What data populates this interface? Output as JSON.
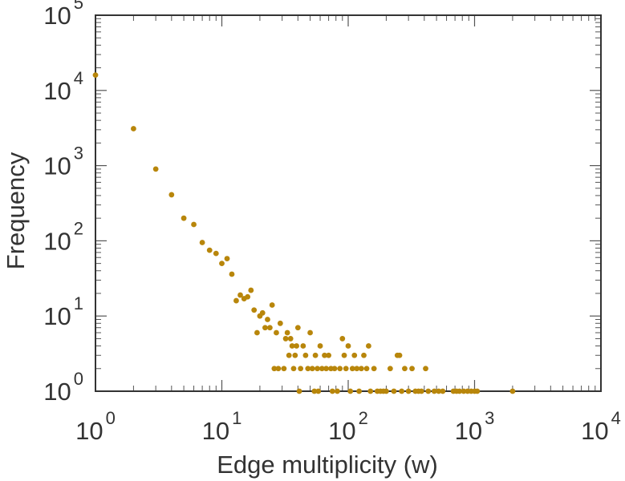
{
  "chart_data": {
    "type": "scatter",
    "xscale": "log",
    "yscale": "log",
    "xlabel": "Edge multiplicity (w)",
    "ylabel": "Frequency",
    "xlim": [
      1,
      10000
    ],
    "ylim": [
      1,
      100000
    ],
    "grid": false,
    "marker_color": "#b8860b",
    "x_ticks": [
      {
        "base": "10",
        "exp": "0"
      },
      {
        "base": "10",
        "exp": "1"
      },
      {
        "base": "10",
        "exp": "2"
      },
      {
        "base": "10",
        "exp": "3"
      },
      {
        "base": "10",
        "exp": "4"
      }
    ],
    "y_ticks": [
      {
        "base": "10",
        "exp": "0"
      },
      {
        "base": "10",
        "exp": "1"
      },
      {
        "base": "10",
        "exp": "2"
      },
      {
        "base": "10",
        "exp": "3"
      },
      {
        "base": "10",
        "exp": "4"
      },
      {
        "base": "10",
        "exp": "5"
      }
    ],
    "points": [
      [
        1,
        16000
      ],
      [
        2,
        3100
      ],
      [
        3,
        900
      ],
      [
        4,
        410
      ],
      [
        5,
        200
      ],
      [
        6,
        165
      ],
      [
        7,
        95
      ],
      [
        8,
        75
      ],
      [
        9,
        68
      ],
      [
        10,
        50
      ],
      [
        11,
        58
      ],
      [
        12,
        36
      ],
      [
        13,
        16
      ],
      [
        14,
        19
      ],
      [
        15,
        17
      ],
      [
        16,
        18
      ],
      [
        17,
        22
      ],
      [
        18,
        12
      ],
      [
        19,
        6
      ],
      [
        20,
        10
      ],
      [
        21,
        11
      ],
      [
        22,
        7
      ],
      [
        23,
        9
      ],
      [
        24,
        7
      ],
      [
        25,
        14
      ],
      [
        26,
        2
      ],
      [
        27,
        6
      ],
      [
        28,
        2
      ],
      [
        29,
        8
      ],
      [
        31,
        2
      ],
      [
        32,
        5
      ],
      [
        33,
        6
      ],
      [
        34,
        3
      ],
      [
        35,
        5
      ],
      [
        36,
        4
      ],
      [
        37,
        2
      ],
      [
        38,
        3
      ],
      [
        39,
        4
      ],
      [
        40,
        7
      ],
      [
        41,
        1
      ],
      [
        42,
        2
      ],
      [
        44,
        4
      ],
      [
        46,
        3
      ],
      [
        48,
        2
      ],
      [
        50,
        6
      ],
      [
        52,
        2
      ],
      [
        54,
        1
      ],
      [
        55,
        3
      ],
      [
        57,
        2
      ],
      [
        58,
        1
      ],
      [
        60,
        4
      ],
      [
        62,
        2
      ],
      [
        65,
        3
      ],
      [
        67,
        2
      ],
      [
        70,
        3
      ],
      [
        73,
        2
      ],
      [
        75,
        1
      ],
      [
        78,
        2
      ],
      [
        82,
        1
      ],
      [
        86,
        2
      ],
      [
        90,
        5
      ],
      [
        93,
        3
      ],
      [
        96,
        2
      ],
      [
        100,
        4
      ],
      [
        104,
        1
      ],
      [
        108,
        2
      ],
      [
        112,
        3
      ],
      [
        117,
        2
      ],
      [
        122,
        1
      ],
      [
        127,
        2
      ],
      [
        133,
        3
      ],
      [
        140,
        2
      ],
      [
        145,
        4
      ],
      [
        150,
        1
      ],
      [
        160,
        2
      ],
      [
        170,
        1
      ],
      [
        180,
        1
      ],
      [
        190,
        1
      ],
      [
        200,
        1
      ],
      [
        215,
        2
      ],
      [
        230,
        1
      ],
      [
        245,
        3
      ],
      [
        255,
        3
      ],
      [
        265,
        1
      ],
      [
        280,
        2
      ],
      [
        300,
        1
      ],
      [
        320,
        2
      ],
      [
        340,
        1
      ],
      [
        360,
        1
      ],
      [
        380,
        1
      ],
      [
        410,
        2
      ],
      [
        430,
        1
      ],
      [
        480,
        1
      ],
      [
        520,
        1
      ],
      [
        560,
        1
      ],
      [
        680,
        1
      ],
      [
        720,
        1
      ],
      [
        760,
        1
      ],
      [
        820,
        1
      ],
      [
        880,
        1
      ],
      [
        940,
        1
      ],
      [
        1000,
        1
      ],
      [
        1050,
        1
      ],
      [
        2000,
        1
      ]
    ]
  }
}
